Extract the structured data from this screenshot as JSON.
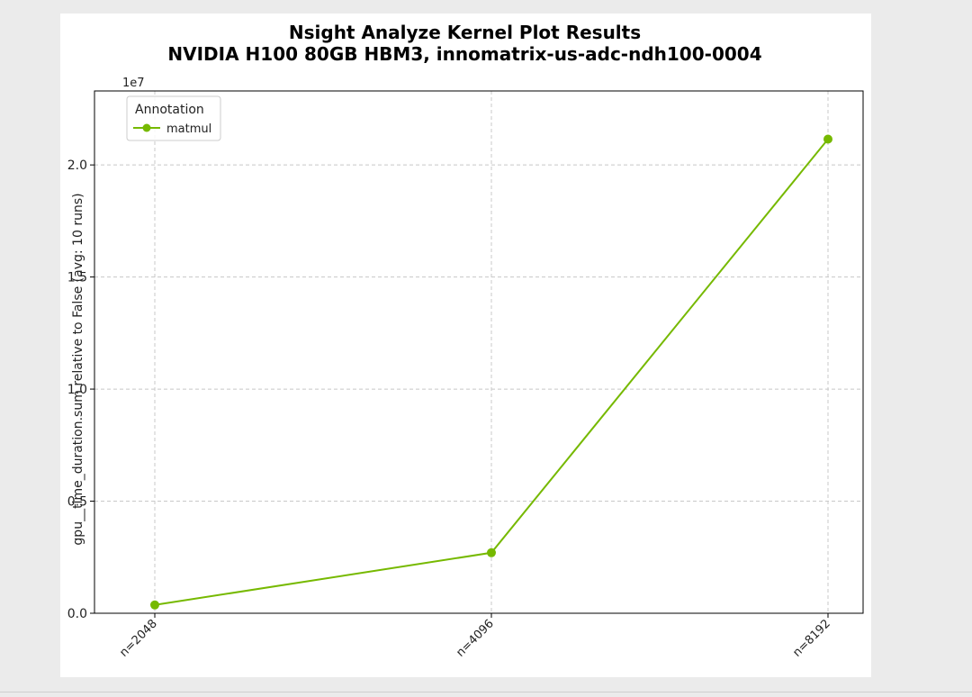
{
  "chart_data": {
    "type": "line",
    "title": "Nsight Analyze Kernel Plot Results",
    "subtitle": "NVIDIA H100 80GB HBM3, innomatrix-us-adc-ndh100-0004",
    "xlabel": "",
    "ylabel": "gpu__time_duration.sum relative to False (avg: 10 runs)",
    "y_offset_label": "1e7",
    "categories": [
      "n=2048",
      "n=4096",
      "n=8192"
    ],
    "series": [
      {
        "name": "matmul",
        "color": "#76b900",
        "values": [
          370000,
          2700000,
          21150000
        ]
      }
    ],
    "ylim": [
      0,
      23300000
    ],
    "yticks": [
      0,
      5000000,
      10000000,
      15000000,
      20000000
    ],
    "ytick_labels": [
      "0.0",
      "0.5",
      "1.0",
      "1.5",
      "2.0"
    ],
    "grid": true,
    "legend": {
      "title": "Annotation",
      "placement": "top-left"
    }
  }
}
